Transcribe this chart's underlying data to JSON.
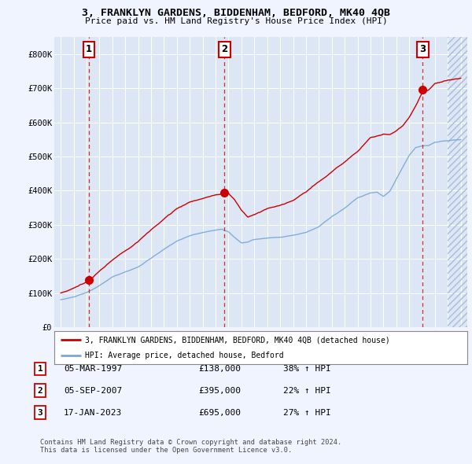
{
  "title": "3, FRANKLYN GARDENS, BIDDENHAM, BEDFORD, MK40 4QB",
  "subtitle": "Price paid vs. HM Land Registry's House Price Index (HPI)",
  "legend_label_red": "3, FRANKLYN GARDENS, BIDDENHAM, BEDFORD, MK40 4QB (detached house)",
  "legend_label_blue": "HPI: Average price, detached house, Bedford",
  "sales": [
    {
      "num": 1,
      "date_label": "05-MAR-1997",
      "x": 1997.18,
      "price": 138000,
      "pct": "38% ↑ HPI"
    },
    {
      "num": 2,
      "date_label": "05-SEP-2007",
      "x": 2007.68,
      "price": 395000,
      "pct": "22% ↑ HPI"
    },
    {
      "num": 3,
      "date_label": "17-JAN-2023",
      "x": 2023.04,
      "price": 695000,
      "pct": "27% ↑ HPI"
    }
  ],
  "footer": "Contains HM Land Registry data © Crown copyright and database right 2024.\nThis data is licensed under the Open Government Licence v3.0.",
  "background_color": "#f0f4ff",
  "plot_bg": "#dce6f5",
  "grid_color": "#ffffff",
  "red_line_color": "#cc0000",
  "blue_line_color": "#7aa8d4",
  "sale_marker_color": "#cc0000",
  "dashed_line_color": "#cc0000",
  "box_border_color": "#cc0000",
  "ylim": [
    0,
    850000
  ],
  "xlim": [
    1994.5,
    2026.5
  ],
  "yticks": [
    0,
    100000,
    200000,
    300000,
    400000,
    500000,
    600000,
    700000,
    800000
  ],
  "ytick_labels": [
    "£0",
    "£100K",
    "£200K",
    "£300K",
    "£400K",
    "£500K",
    "£600K",
    "£700K",
    "£800K"
  ],
  "xticks": [
    1995,
    1996,
    1997,
    1998,
    1999,
    2000,
    2001,
    2002,
    2003,
    2004,
    2005,
    2006,
    2007,
    2008,
    2009,
    2010,
    2011,
    2012,
    2013,
    2014,
    2015,
    2016,
    2017,
    2018,
    2019,
    2020,
    2021,
    2022,
    2023,
    2024,
    2025,
    2026
  ]
}
